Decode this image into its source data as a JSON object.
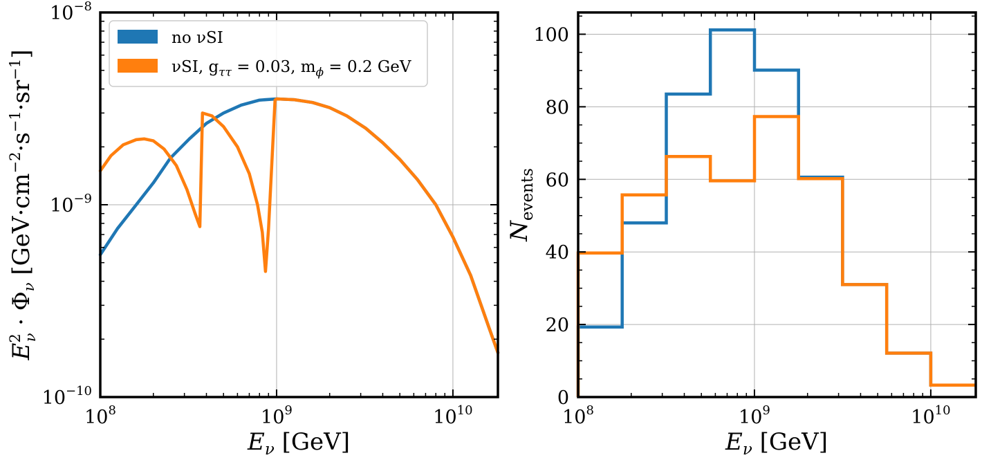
{
  "colors": {
    "no_si": "#1f77b4",
    "si": "#ff7f0e",
    "grid": "#b0b0b0",
    "frame": "#000000"
  },
  "chart_data": [
    {
      "type": "line",
      "x_scale": "log",
      "y_scale": "log",
      "xlim": [
        100000000.0,
        18000000000.0
      ],
      "ylim": [
        1e-10,
        1e-08
      ],
      "grid": true,
      "legend_position": "upper-left",
      "xlabel": "E_ν [GeV]",
      "ylabel": "E_ν² · Φ_ν [GeV·cm⁻²·s⁻¹·sr⁻¹]",
      "x_ticks": [
        {
          "value": 100000000.0,
          "base": "10",
          "exp": "8"
        },
        {
          "value": 1000000000.0,
          "base": "10",
          "exp": "9"
        },
        {
          "value": 10000000000.0,
          "base": "10",
          "exp": "10"
        }
      ],
      "y_ticks": [
        {
          "value": 1e-10,
          "base": "10",
          "exp": "−10"
        },
        {
          "value": 1e-09,
          "base": "10",
          "exp": "−9"
        },
        {
          "value": 1e-08,
          "base": "10",
          "exp": "−8"
        }
      ],
      "series": [
        {
          "name": "no νSI",
          "color_key": "no_si",
          "x": [
            100000000.0,
            125000000.0,
            160000000.0,
            200000000.0,
            250000000.0,
            320000000.0,
            400000000.0,
            500000000.0,
            630000000.0,
            800000000.0,
            1000000000.0,
            1260000000.0,
            1600000000.0,
            2000000000.0,
            2500000000.0,
            3200000000.0,
            4000000000.0,
            5000000000.0,
            6300000000.0,
            8000000000.0,
            10000000000.0,
            12600000000.0,
            16000000000.0,
            18000000000.0
          ],
          "y": [
            5.5e-10,
            7.5e-10,
            1e-09,
            1.3e-09,
            1.75e-09,
            2.2e-09,
            2.65e-09,
            3e-09,
            3.3e-09,
            3.5e-09,
            3.55e-09,
            3.52e-09,
            3.4e-09,
            3.2e-09,
            2.9e-09,
            2.5e-09,
            2.1e-09,
            1.72e-09,
            1.35e-09,
            1e-09,
            6.8e-10,
            4.3e-10,
            2.3e-10,
            1.7e-10
          ]
        },
        {
          "name": "νSI, g_ττ = 0.03, m_ϕ = 0.2 GeV",
          "color_key": "si",
          "x": [
            100000000.0,
            115000000.0,
            135000000.0,
            160000000.0,
            178000000.0,
            200000000.0,
            230000000.0,
            270000000.0,
            310000000.0,
            345000000.0,
            367000000.0,
            380000000.0,
            430000000.0,
            500000000.0,
            600000000.0,
            700000000.0,
            780000000.0,
            830000000.0,
            865000000.0,
            900000000.0,
            980000000.0,
            1000000000.0,
            1260000000.0,
            1600000000.0,
            2000000000.0,
            2500000000.0,
            3200000000.0,
            4000000000.0,
            5000000000.0,
            6300000000.0,
            8000000000.0,
            10000000000.0,
            12600000000.0,
            16000000000.0,
            18000000000.0
          ],
          "y": [
            1.5e-09,
            1.8e-09,
            2.05e-09,
            2.18e-09,
            2.2e-09,
            2.15e-09,
            1.95e-09,
            1.6e-09,
            1.2e-09,
            9e-10,
            7.7e-10,
            3e-09,
            2.9e-09,
            2.55e-09,
            2e-09,
            1.45e-09,
            1e-09,
            7.2e-10,
            4.5e-10,
            7.5e-10,
            3.5e-09,
            3.55e-09,
            3.52e-09,
            3.4e-09,
            3.2e-09,
            2.9e-09,
            2.5e-09,
            2.1e-09,
            1.72e-09,
            1.35e-09,
            1e-09,
            6.8e-10,
            4.3e-10,
            2.3e-10,
            1.7e-10
          ]
        }
      ]
    },
    {
      "type": "histogram",
      "x_scale": "log",
      "y_scale": "linear",
      "xlim": [
        100000000.0,
        18000000000.0
      ],
      "ylim": [
        0,
        106
      ],
      "grid": true,
      "xlabel": "E_ν [GeV]",
      "ylabel": "N_events",
      "x_ticks": [
        {
          "value": 100000000.0,
          "base": "10",
          "exp": "8"
        },
        {
          "value": 1000000000.0,
          "base": "10",
          "exp": "9"
        },
        {
          "value": 10000000000.0,
          "base": "10",
          "exp": "10"
        }
      ],
      "y_ticks": [
        0,
        20,
        40,
        60,
        80,
        100
      ],
      "bin_edges": [
        100000000.0,
        177800000.0,
        316200000.0,
        562300000.0,
        1000000000.0,
        1778000000.0,
        3162000000.0,
        5623000000.0,
        10000000000.0,
        18000000000.0
      ],
      "series": [
        {
          "name": "no νSI",
          "color_key": "no_si",
          "values": [
            19.3,
            48.0,
            83.5,
            101.2,
            90.1,
            60.6,
            31.0,
            12.1,
            3.3
          ]
        },
        {
          "name": "νSI, g_ττ = 0.03, m_ϕ = 0.2 GeV",
          "color_key": "si",
          "values": [
            39.7,
            55.7,
            66.3,
            59.6,
            77.3,
            60.2,
            31.0,
            12.1,
            3.3
          ]
        }
      ]
    }
  ],
  "legend": {
    "items": [
      {
        "text": "no νSI",
        "color_key": "no_si"
      },
      {
        "text": "νSI, g",
        "sub": "ττ",
        "text2": " = 0.03, m",
        "sub2": "ϕ",
        "text3": " = 0.2 GeV",
        "color_key": "si"
      }
    ]
  },
  "labels": {
    "left_xlabel_main": "E",
    "left_xlabel_sub": "ν",
    "left_xlabel_unit": " [GeV]",
    "right_xlabel_main": "E",
    "right_xlabel_sub": "ν",
    "right_xlabel_unit": " [GeV]",
    "left_ylabel_E": "E",
    "left_ylabel_sup": "2",
    "left_ylabel_sub": "ν",
    "left_ylabel_dot": " · Φ",
    "left_ylabel_sub2": "ν",
    "left_ylabel_unit": " [GeV·cm",
    "left_ylabel_m2": "−2",
    "left_ylabel_s": "·s",
    "left_ylabel_m1": "−1",
    "left_ylabel_sr": "·sr",
    "left_ylabel_m1b": "−1",
    "left_ylabel_close": "]",
    "right_ylabel_main": "N",
    "right_ylabel_sub": "events"
  }
}
